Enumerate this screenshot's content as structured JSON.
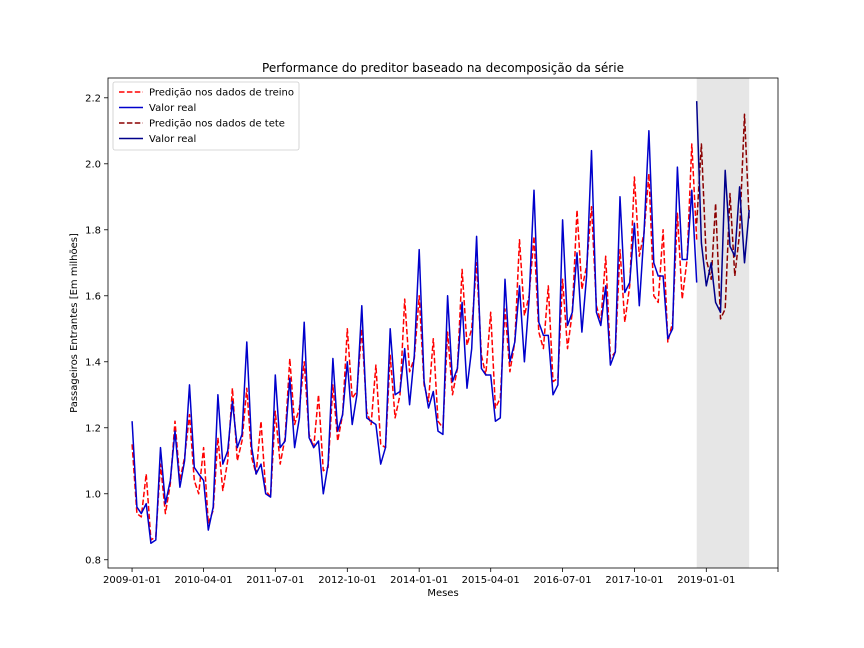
{
  "chart_data": {
    "type": "line",
    "title": "Performance do preditor baseado na decomposição da série",
    "xlabel": "Meses",
    "ylabel": "Passageiros Entrantes [Em milhões]",
    "x_range": [
      "2008-08-01",
      "2020-04-01"
    ],
    "ylim": [
      0.775,
      2.26
    ],
    "grid": false,
    "legend_position": "top-left",
    "x_ticks": [
      "2009-01-01",
      "2010-04-01",
      "2011-07-01",
      "2012-10-01",
      "2014-01-01",
      "2015-04-01",
      "2016-07-01",
      "2017-10-01",
      "2019-01-01",
      "2020-04-01"
    ],
    "x_tick_labels": [
      "2009-01-01",
      "2010-04-01",
      "2011-07-01",
      "2012-10-01",
      "2014-01-01",
      "2015-04-01",
      "2016-07-01",
      "2017-10-01",
      "2019-01-01",
      ""
    ],
    "y_ticks": [
      0.8,
      1.0,
      1.2,
      1.4,
      1.6,
      1.8,
      2.0,
      2.2
    ],
    "y_tick_labels": [
      "0.8",
      "1.0",
      "1.2",
      "1.4",
      "1.6",
      "1.8",
      "2.0",
      "2.2"
    ],
    "shaded_region": {
      "from": "2018-11-01",
      "to": "2019-10-01",
      "color": "#e6e6e6"
    },
    "train_start": "2009-01-01",
    "test_start": "2018-11-01",
    "series": [
      {
        "name": "Predição nos dados de treino",
        "color": "#ff0000",
        "dash": true,
        "segment": "train",
        "values": [
          1.15,
          0.94,
          0.93,
          1.06,
          0.86,
          0.87,
          1.09,
          0.94,
          1.03,
          1.22,
          1.04,
          1.11,
          1.24,
          1.04,
          1.0,
          1.14,
          0.91,
          0.95,
          1.17,
          1.01,
          1.1,
          1.32,
          1.1,
          1.16,
          1.32,
          1.11,
          1.06,
          1.22,
          1.01,
          0.99,
          1.25,
          1.09,
          1.17,
          1.41,
          1.21,
          1.26,
          1.4,
          1.18,
          1.14,
          1.3,
          1.07,
          1.08,
          1.33,
          1.16,
          1.24,
          1.5,
          1.29,
          1.31,
          1.5,
          1.25,
          1.21,
          1.39,
          1.15,
          1.14,
          1.42,
          1.23,
          1.3,
          1.59,
          1.37,
          1.41,
          1.6,
          1.33,
          1.28,
          1.47,
          1.22,
          1.2,
          1.49,
          1.3,
          1.38,
          1.68,
          1.45,
          1.5,
          1.7,
          1.42,
          1.36,
          1.55,
          1.26,
          1.29,
          1.56,
          1.37,
          1.46,
          1.77,
          1.54,
          1.6,
          1.78,
          1.49,
          1.44,
          1.63,
          1.34,
          1.35,
          1.65,
          1.44,
          1.55,
          1.86,
          1.62,
          1.69,
          1.87,
          1.57,
          1.52,
          1.72,
          1.41,
          1.43,
          1.74,
          1.52,
          1.63,
          1.96,
          1.72,
          1.79,
          1.97,
          1.6,
          1.58,
          1.8,
          1.46,
          1.52,
          1.85,
          1.59,
          1.71,
          2.06,
          1.77
        ]
      },
      {
        "name": "Valor real",
        "color": "#0000cc",
        "dash": false,
        "segment": "train",
        "values": [
          1.22,
          0.96,
          0.94,
          0.97,
          0.85,
          0.86,
          1.14,
          0.97,
          1.04,
          1.19,
          1.02,
          1.1,
          1.33,
          1.08,
          1.06,
          1.04,
          0.89,
          0.96,
          1.3,
          1.09,
          1.13,
          1.28,
          1.14,
          1.18,
          1.46,
          1.14,
          1.06,
          1.09,
          1.0,
          0.99,
          1.36,
          1.14,
          1.16,
          1.35,
          1.14,
          1.23,
          1.52,
          1.17,
          1.14,
          1.16,
          1.0,
          1.09,
          1.41,
          1.19,
          1.24,
          1.4,
          1.21,
          1.3,
          1.57,
          1.23,
          1.22,
          1.21,
          1.09,
          1.14,
          1.5,
          1.3,
          1.31,
          1.44,
          1.27,
          1.42,
          1.74,
          1.34,
          1.26,
          1.31,
          1.19,
          1.18,
          1.6,
          1.34,
          1.38,
          1.58,
          1.32,
          1.44,
          1.78,
          1.38,
          1.36,
          1.36,
          1.22,
          1.23,
          1.65,
          1.4,
          1.46,
          1.63,
          1.4,
          1.59,
          1.92,
          1.52,
          1.48,
          1.48,
          1.3,
          1.33,
          1.83,
          1.51,
          1.55,
          1.73,
          1.49,
          1.66,
          2.04,
          1.55,
          1.51,
          1.63,
          1.39,
          1.43,
          1.9,
          1.61,
          1.64,
          1.82,
          1.57,
          1.79,
          2.1,
          1.7,
          1.66,
          1.66,
          1.47,
          1.5,
          1.99,
          1.71,
          1.71,
          1.92,
          1.64
        ]
      },
      {
        "name": "Predição nos dados de tete",
        "color": "#8b0000",
        "dash": true,
        "segment": "test",
        "values": [
          1.82,
          2.06,
          1.71,
          1.65,
          1.88,
          1.53,
          1.56,
          1.91,
          1.66,
          1.79,
          2.15,
          1.83
        ]
      },
      {
        "name": "Valor real",
        "color": "#00008b",
        "dash": false,
        "segment": "test",
        "values": [
          2.19,
          1.76,
          1.63,
          1.7,
          1.58,
          1.55,
          1.98,
          1.75,
          1.72,
          1.93,
          1.7,
          1.86
        ]
      }
    ]
  }
}
